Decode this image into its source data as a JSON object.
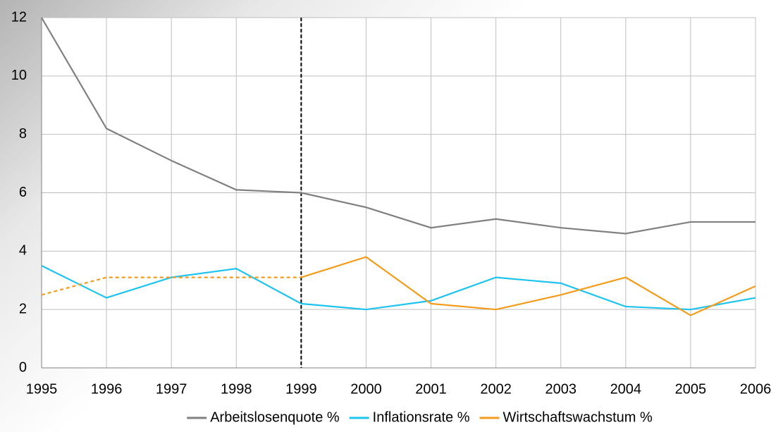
{
  "chart_data": {
    "type": "line",
    "x": [
      1995,
      1996,
      1997,
      1998,
      1999,
      2000,
      2001,
      2002,
      2003,
      2004,
      2005,
      2006
    ],
    "xlim": [
      1995,
      2006
    ],
    "xticks": [
      1995,
      1996,
      1997,
      1998,
      1999,
      2000,
      2001,
      2002,
      2003,
      2004,
      2005,
      2006
    ],
    "ylim": [
      0,
      12
    ],
    "yticks": [
      0,
      2,
      4,
      6,
      8,
      10,
      12
    ],
    "grid": true,
    "vline": 1999,
    "legend": "bottom",
    "series": [
      {
        "name": "Arbeitslosenquote %",
        "color": "#808080",
        "values": [
          12,
          8.2,
          7.1,
          6.1,
          6.0,
          5.5,
          4.8,
          5.1,
          4.8,
          4.6,
          5.0,
          5.0
        ]
      },
      {
        "name": "Inflationsrate %",
        "color": "#1ec4ee",
        "values": [
          3.5,
          2.4,
          3.1,
          3.4,
          2.2,
          2.0,
          2.3,
          3.1,
          2.9,
          2.1,
          2.0,
          2.4
        ]
      },
      {
        "name": "Wirtschaftswachstum %",
        "color": "#f39c1c",
        "values": [
          2.5,
          3.1,
          3.1,
          3.1,
          3.1,
          3.8,
          2.2,
          2.0,
          2.5,
          3.1,
          1.8,
          2.8
        ],
        "dashed_until": 1999
      }
    ]
  }
}
